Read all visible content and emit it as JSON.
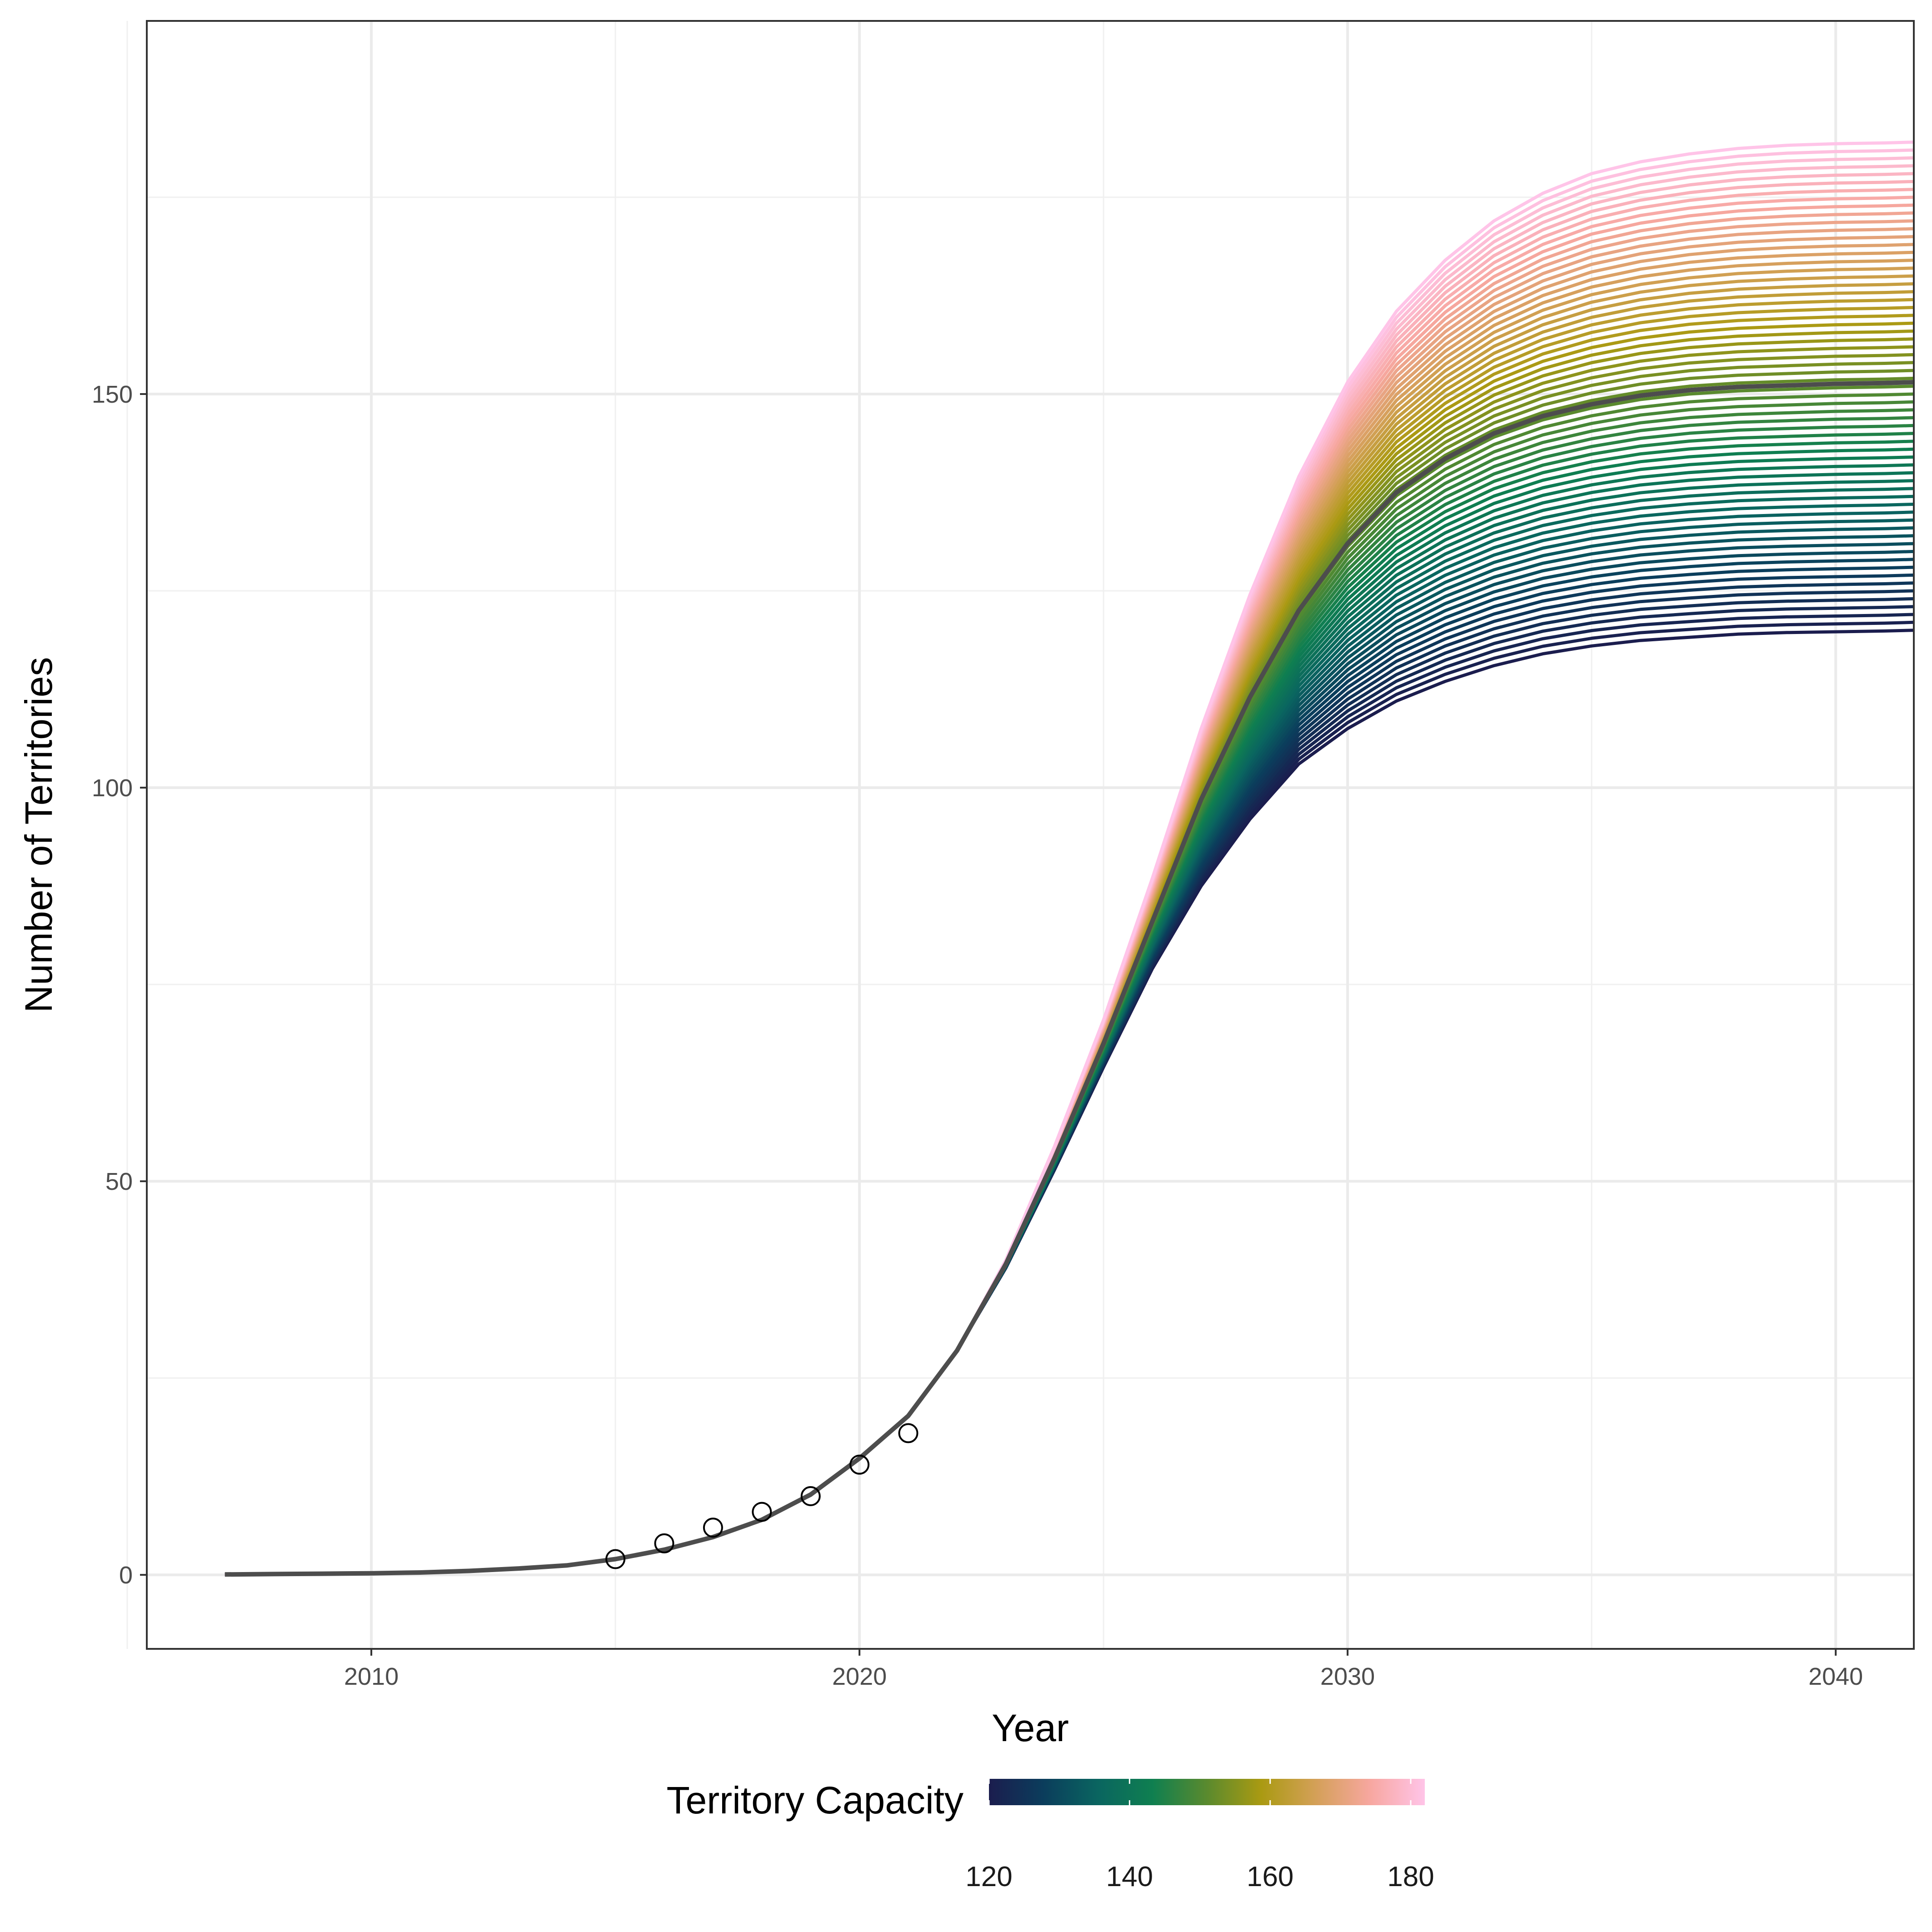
{
  "chart_data": {
    "type": "line",
    "title": "",
    "xlabel": "Year",
    "ylabel": "Number of Territories",
    "xlim": [
      2005.4,
      2041.6
    ],
    "ylim": [
      -9.4,
      197.4
    ],
    "x_ticks": [
      2010,
      2020,
      2030,
      2040
    ],
    "y_ticks": [
      0,
      50,
      100,
      150
    ],
    "x_minor": [
      2005,
      2015,
      2025,
      2035
    ],
    "y_minor": [
      25,
      75,
      125,
      175
    ],
    "grid": true,
    "legend": {
      "title": "Territory Capacity",
      "position": "bottom",
      "type": "colorbar",
      "range": [
        120,
        182
      ],
      "ticks": [
        120,
        140,
        160,
        180
      ],
      "colors": [
        "#1b1d4e",
        "#0b3d5c",
        "#0a6560",
        "#0f7f50",
        "#5a8a2e",
        "#aa9a12",
        "#d4a058",
        "#f7a7a0",
        "#ffc4e8"
      ]
    },
    "series_capacity_range": [
      120,
      182
    ],
    "series_count": 63,
    "model": {
      "years": [
        2007,
        2008,
        2009,
        2010,
        2011,
        2012,
        2013,
        2014,
        2015,
        2016,
        2017,
        2018,
        2019,
        2020,
        2021,
        2022,
        2023,
        2024,
        2025,
        2026,
        2027,
        2028,
        2029,
        2030,
        2031,
        2032,
        2033,
        2034,
        2035,
        2036,
        2037,
        2038,
        2039,
        2040,
        2041,
        2041.6
      ],
      "shared_until": 2022,
      "shared_values": [
        0.05,
        0.1,
        0.15,
        0.2,
        0.3,
        0.5,
        0.8,
        1.2,
        2.0,
        3.2,
        4.8,
        7.0,
        10.2,
        14.8,
        20.2,
        28.5
      ],
      "reference_capacity": 151.5,
      "reference_values": [
        39.5,
        53.0,
        67.5,
        83.0,
        98.5,
        111.5,
        122.5,
        131.0,
        137.5,
        141.8,
        145.0,
        147.2,
        148.7,
        149.8,
        150.5,
        150.9,
        151.1,
        151.3,
        151.4,
        151.5
      ],
      "low_capacity": 120,
      "low_values": [
        39.0,
        51.5,
        64.5,
        77.0,
        87.5,
        96.0,
        103.0,
        107.5,
        111.0,
        113.5,
        115.5,
        117.0,
        118.0,
        118.7,
        119.1,
        119.5,
        119.7,
        119.8,
        119.9,
        120.0
      ],
      "high_capacity": 182,
      "high_values": [
        40.0,
        54.5,
        70.5,
        88.5,
        107.5,
        124.5,
        139.5,
        151.5,
        160.5,
        167.0,
        172.0,
        175.5,
        178.0,
        179.5,
        180.5,
        181.2,
        181.6,
        181.8,
        181.9,
        182.0
      ]
    },
    "highlighted_series": {
      "name": "",
      "capacity": 151.5,
      "color": "#4d4d4d"
    },
    "observed": {
      "x": [
        2015,
        2016,
        2017,
        2018,
        2019,
        2020,
        2021
      ],
      "y": [
        2,
        4,
        6,
        8,
        10,
        14,
        18
      ],
      "marker": "open-circle"
    }
  }
}
